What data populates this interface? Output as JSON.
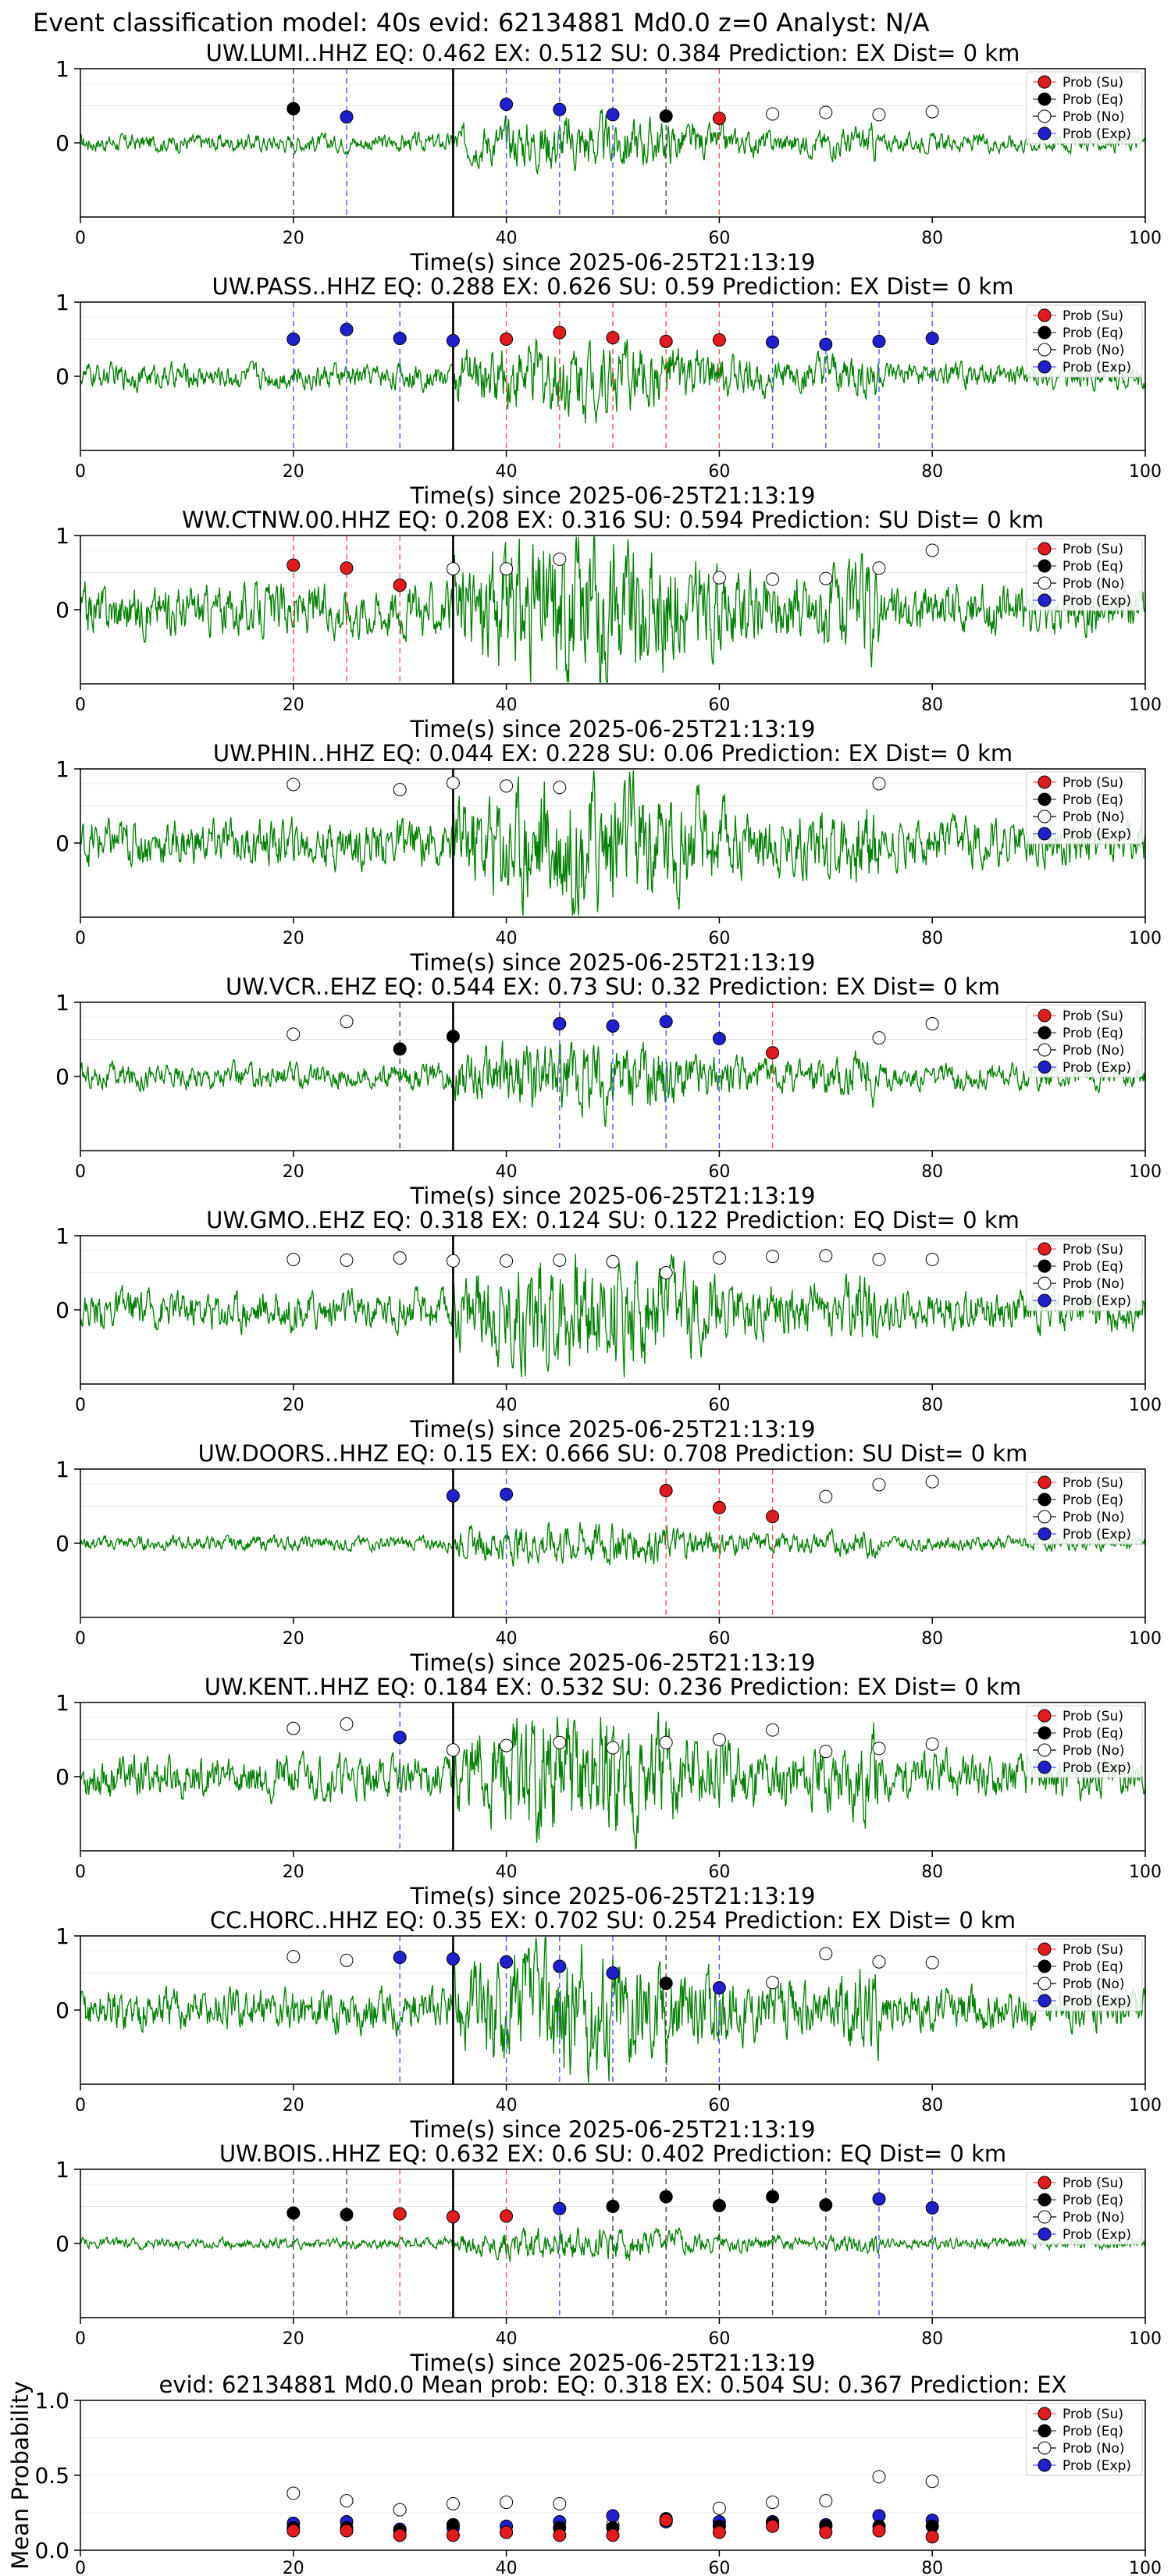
{
  "header": "Event classification model: 40s evid: 62134881 Md0.0 z=0 Analyst: N/A",
  "xlabel": "Time(s) since 2025-06-25T21:13:19",
  "legend": [
    "Prob (Su)",
    "Prob (Eq)",
    "Prob (No)",
    "Prob (Exp)"
  ],
  "colors": {
    "su": "#e41a1c",
    "eq": "#000000",
    "no": "#ffffff",
    "exp": "#1f1fd0",
    "trace": "#008000",
    "su_line": "#ff5555",
    "exp_line": "#5555ff",
    "eq_line": "#444444"
  },
  "chart_data": [
    {
      "type": "line",
      "title": "UW.LUMI..HHZ   EQ: 0.462  EX: 0.512  SU: 0.384   Prediction: EX    Dist= 0 km",
      "xlim": [
        0,
        100
      ],
      "ylim": [
        -1,
        1
      ],
      "xticks": [
        0,
        20,
        40,
        60,
        80,
        100
      ],
      "yticks": [
        0,
        1
      ],
      "pick": 35,
      "amp": 0.25,
      "points": [
        [
          20,
          0.46,
          "eq"
        ],
        [
          25,
          0.35,
          "exp"
        ],
        [
          40,
          0.52,
          "exp"
        ],
        [
          45,
          0.45,
          "exp"
        ],
        [
          50,
          0.38,
          "exp"
        ],
        [
          55,
          0.36,
          "eq"
        ],
        [
          60,
          0.33,
          "su"
        ],
        [
          65,
          0.39,
          "no"
        ],
        [
          70,
          0.41,
          "no"
        ],
        [
          75,
          0.38,
          "no"
        ],
        [
          80,
          0.42,
          "no"
        ]
      ]
    },
    {
      "type": "line",
      "title": "UW.PASS..HHZ   EQ: 0.288  EX: 0.626  SU: 0.59   Prediction: EX    Dist= 0 km",
      "xlim": [
        0,
        100
      ],
      "ylim": [
        -1,
        1
      ],
      "xticks": [
        0,
        20,
        40,
        60,
        80,
        100
      ],
      "yticks": [
        0,
        1
      ],
      "pick": 35,
      "amp": 0.35,
      "points": [
        [
          20,
          0.5,
          "exp"
        ],
        [
          25,
          0.63,
          "exp"
        ],
        [
          30,
          0.51,
          "exp"
        ],
        [
          35,
          0.48,
          "exp"
        ],
        [
          40,
          0.5,
          "su"
        ],
        [
          45,
          0.59,
          "su"
        ],
        [
          50,
          0.52,
          "su"
        ],
        [
          55,
          0.47,
          "su"
        ],
        [
          60,
          0.49,
          "su"
        ],
        [
          65,
          0.46,
          "exp"
        ],
        [
          70,
          0.43,
          "exp"
        ],
        [
          75,
          0.47,
          "exp"
        ],
        [
          80,
          0.51,
          "exp"
        ]
      ]
    },
    {
      "type": "line",
      "title": "WW.CTNW.00.HHZ   EQ: 0.208  EX: 0.316  SU: 0.594   Prediction: SU    Dist= 0 km",
      "xlim": [
        0,
        100
      ],
      "ylim": [
        -1,
        1
      ],
      "xticks": [
        0,
        20,
        40,
        60,
        80,
        100
      ],
      "yticks": [
        0,
        1
      ],
      "pick": 35,
      "amp": 0.7,
      "points": [
        [
          20,
          0.6,
          "su"
        ],
        [
          25,
          0.56,
          "su"
        ],
        [
          30,
          0.33,
          "su"
        ],
        [
          35,
          0.55,
          "no"
        ],
        [
          40,
          0.55,
          "no"
        ],
        [
          45,
          0.68,
          "no"
        ],
        [
          60,
          0.43,
          "no"
        ],
        [
          65,
          0.41,
          "no"
        ],
        [
          70,
          0.42,
          "no"
        ],
        [
          75,
          0.56,
          "no"
        ],
        [
          80,
          0.8,
          "no"
        ]
      ]
    },
    {
      "type": "line",
      "title": "UW.PHIN..HHZ   EQ: 0.044  EX: 0.228  SU: 0.06   Prediction: EX    Dist= 0 km",
      "xlim": [
        0,
        100
      ],
      "ylim": [
        -1,
        1
      ],
      "xticks": [
        0,
        20,
        40,
        60,
        80,
        100
      ],
      "yticks": [
        0,
        1
      ],
      "pick": 35,
      "amp": 0.65,
      "points": [
        [
          20,
          0.79,
          "no"
        ],
        [
          30,
          0.72,
          "no"
        ],
        [
          35,
          0.81,
          "no"
        ],
        [
          40,
          0.77,
          "no"
        ],
        [
          45,
          0.75,
          "no"
        ],
        [
          75,
          0.8,
          "no"
        ]
      ]
    },
    {
      "type": "line",
      "title": "UW.VCR..EHZ   EQ: 0.544  EX: 0.73  SU: 0.32   Prediction: EX    Dist= 0 km",
      "xlim": [
        0,
        100
      ],
      "ylim": [
        -1,
        1
      ],
      "xticks": [
        0,
        20,
        40,
        60,
        80,
        100
      ],
      "yticks": [
        0,
        1
      ],
      "pick": 35,
      "amp": 0.35,
      "points": [
        [
          20,
          0.57,
          "no"
        ],
        [
          25,
          0.74,
          "no"
        ],
        [
          30,
          0.37,
          "eq"
        ],
        [
          35,
          0.54,
          "eq"
        ],
        [
          45,
          0.71,
          "exp"
        ],
        [
          50,
          0.68,
          "exp"
        ],
        [
          55,
          0.74,
          "exp"
        ],
        [
          60,
          0.51,
          "exp"
        ],
        [
          65,
          0.32,
          "su"
        ],
        [
          75,
          0.52,
          "no"
        ],
        [
          80,
          0.71,
          "no"
        ]
      ]
    },
    {
      "type": "line",
      "title": "UW.GMO..EHZ   EQ: 0.318  EX: 0.124  SU: 0.122   Prediction: EQ    Dist= 0 km",
      "xlim": [
        0,
        100
      ],
      "ylim": [
        -1,
        1
      ],
      "xticks": [
        0,
        20,
        40,
        60,
        80,
        100
      ],
      "yticks": [
        0,
        1
      ],
      "pick": 35,
      "amp": 0.55,
      "points": [
        [
          20,
          0.68,
          "no"
        ],
        [
          25,
          0.67,
          "no"
        ],
        [
          30,
          0.7,
          "no"
        ],
        [
          35,
          0.66,
          "no"
        ],
        [
          40,
          0.66,
          "no"
        ],
        [
          45,
          0.67,
          "no"
        ],
        [
          50,
          0.65,
          "no"
        ],
        [
          55,
          0.5,
          "no"
        ],
        [
          60,
          0.7,
          "no"
        ],
        [
          65,
          0.72,
          "no"
        ],
        [
          70,
          0.73,
          "no"
        ],
        [
          75,
          0.68,
          "no"
        ],
        [
          80,
          0.68,
          "no"
        ]
      ]
    },
    {
      "type": "line",
      "title": "UW.DOORS..HHZ   EQ: 0.15  EX: 0.666  SU: 0.708   Prediction: SU    Dist= 0 km",
      "xlim": [
        0,
        100
      ],
      "ylim": [
        -1,
        1
      ],
      "xticks": [
        0,
        20,
        40,
        60,
        80,
        100
      ],
      "yticks": [
        0,
        1
      ],
      "pick": 35,
      "amp": 0.2,
      "points": [
        [
          35,
          0.64,
          "exp"
        ],
        [
          40,
          0.66,
          "exp"
        ],
        [
          55,
          0.71,
          "su"
        ],
        [
          60,
          0.48,
          "su"
        ],
        [
          65,
          0.36,
          "su"
        ],
        [
          70,
          0.63,
          "no"
        ],
        [
          75,
          0.79,
          "no"
        ],
        [
          80,
          0.83,
          "no"
        ]
      ]
    },
    {
      "type": "line",
      "title": "UW.KENT..HHZ   EQ: 0.184  EX: 0.532  SU: 0.236   Prediction: EX    Dist= 0 km",
      "xlim": [
        0,
        100
      ],
      "ylim": [
        -1,
        1
      ],
      "xticks": [
        0,
        20,
        40,
        60,
        80,
        100
      ],
      "yticks": [
        0,
        1
      ],
      "pick": 35,
      "amp": 0.6,
      "points": [
        [
          20,
          0.65,
          "no"
        ],
        [
          25,
          0.71,
          "no"
        ],
        [
          30,
          0.53,
          "exp"
        ],
        [
          35,
          0.36,
          "no"
        ],
        [
          40,
          0.42,
          "no"
        ],
        [
          45,
          0.46,
          "no"
        ],
        [
          50,
          0.39,
          "no"
        ],
        [
          55,
          0.46,
          "no"
        ],
        [
          60,
          0.5,
          "no"
        ],
        [
          65,
          0.63,
          "no"
        ],
        [
          70,
          0.34,
          "no"
        ],
        [
          75,
          0.38,
          "no"
        ],
        [
          80,
          0.44,
          "no"
        ]
      ]
    },
    {
      "type": "line",
      "title": "CC.HORC..HHZ   EQ: 0.35  EX: 0.702  SU: 0.254   Prediction: EX    Dist= 0 km",
      "xlim": [
        0,
        100
      ],
      "ylim": [
        -1,
        1
      ],
      "xticks": [
        0,
        20,
        40,
        60,
        80,
        100
      ],
      "yticks": [
        0,
        1
      ],
      "pick": 35,
      "amp": 0.6,
      "points": [
        [
          20,
          0.72,
          "no"
        ],
        [
          25,
          0.67,
          "no"
        ],
        [
          30,
          0.71,
          "exp"
        ],
        [
          35,
          0.69,
          "exp"
        ],
        [
          40,
          0.65,
          "exp"
        ],
        [
          45,
          0.59,
          "exp"
        ],
        [
          50,
          0.5,
          "exp"
        ],
        [
          55,
          0.36,
          "eq"
        ],
        [
          60,
          0.3,
          "exp"
        ],
        [
          65,
          0.37,
          "no"
        ],
        [
          70,
          0.76,
          "no"
        ],
        [
          75,
          0.65,
          "no"
        ],
        [
          80,
          0.64,
          "no"
        ]
      ]
    },
    {
      "type": "line",
      "title": "UW.BOIS..HHZ   EQ: 0.632  EX: 0.6  SU: 0.402   Prediction: EQ    Dist= 0 km",
      "xlim": [
        0,
        100
      ],
      "ylim": [
        -1,
        1
      ],
      "xticks": [
        0,
        20,
        40,
        60,
        80,
        100
      ],
      "yticks": [
        0,
        1
      ],
      "pick": 35,
      "amp": 0.15,
      "points": [
        [
          20,
          0.41,
          "eq"
        ],
        [
          25,
          0.39,
          "eq"
        ],
        [
          30,
          0.4,
          "su"
        ],
        [
          35,
          0.36,
          "su"
        ],
        [
          40,
          0.37,
          "su"
        ],
        [
          45,
          0.47,
          "exp"
        ],
        [
          50,
          0.5,
          "eq"
        ],
        [
          55,
          0.63,
          "eq"
        ],
        [
          60,
          0.51,
          "eq"
        ],
        [
          65,
          0.63,
          "eq"
        ],
        [
          70,
          0.52,
          "eq"
        ],
        [
          75,
          0.6,
          "exp"
        ],
        [
          80,
          0.48,
          "exp"
        ]
      ]
    }
  ],
  "mean": {
    "title": "evid: 62134881  Md0.0   Mean prob:   EQ: 0.318  EX: 0.504  SU: 0.367   Prediction: EX",
    "ylabel": "Mean Probability",
    "xlim": [
      0,
      100
    ],
    "ylim": [
      0,
      1
    ],
    "xticks": [
      0,
      20,
      40,
      60,
      80,
      100
    ],
    "yticks": [
      0.0,
      0.5,
      1.0
    ],
    "x": [
      20,
      25,
      30,
      35,
      40,
      45,
      50,
      55,
      60,
      65,
      70,
      75,
      80
    ],
    "series": [
      {
        "key": "no",
        "name": "Prob (No)",
        "values": [
          0.38,
          0.33,
          0.27,
          0.31,
          0.32,
          0.31,
          0.17,
          0.2,
          0.28,
          0.32,
          0.33,
          0.49,
          0.46
        ]
      },
      {
        "key": "exp",
        "name": "Prob (Exp)",
        "values": [
          0.18,
          0.19,
          0.14,
          0.15,
          0.16,
          0.19,
          0.23,
          0.19,
          0.19,
          0.19,
          0.17,
          0.23,
          0.2
        ]
      },
      {
        "key": "eq",
        "name": "Prob (Eq)",
        "values": [
          0.15,
          0.15,
          0.13,
          0.17,
          0.12,
          0.15,
          0.15,
          0.21,
          0.16,
          0.18,
          0.16,
          0.16,
          0.16
        ]
      },
      {
        "key": "su",
        "name": "Prob (Su)",
        "values": [
          0.13,
          0.13,
          0.1,
          0.1,
          0.12,
          0.1,
          0.1,
          0.2,
          0.12,
          0.16,
          0.12,
          0.13,
          0.09
        ]
      }
    ]
  }
}
